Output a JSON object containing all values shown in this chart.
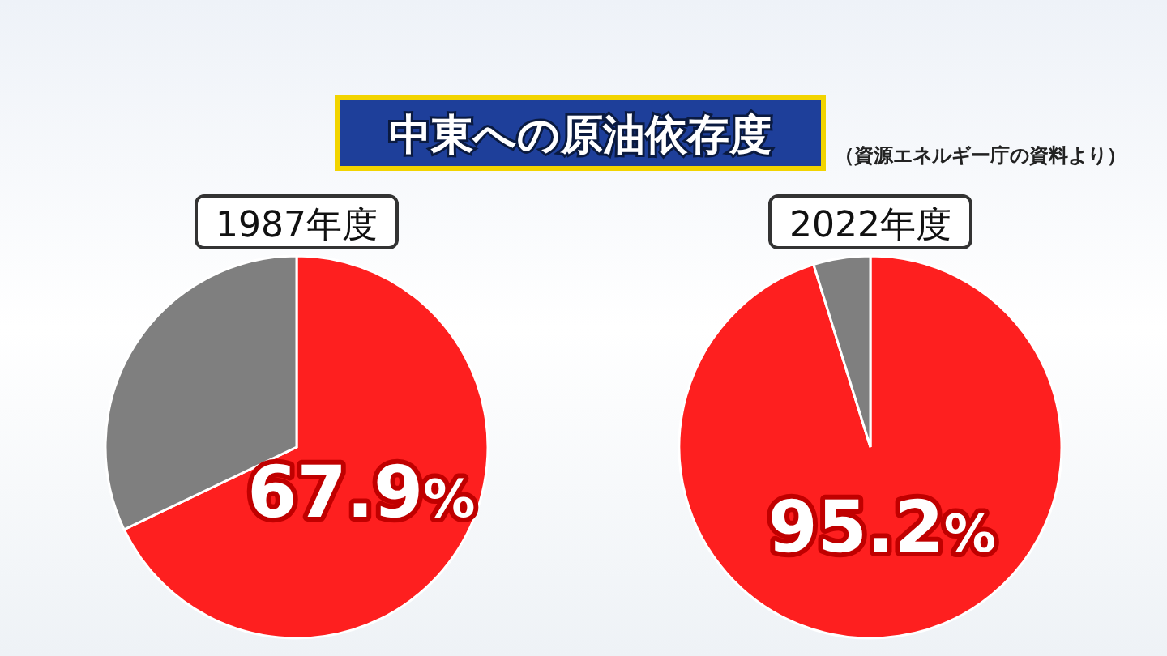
{
  "chart_data": [
    {
      "type": "pie",
      "title": "中東への原油依存度",
      "subtitle": "1987年度",
      "annotations": [
        "（資源エネルギー庁の資料より）"
      ],
      "categories": [
        null,
        null
      ],
      "values": [
        67.9,
        32.1
      ],
      "colors": [
        "#fe1f1f",
        "#7f7f7f"
      ],
      "value_labels": [
        "67.9%",
        null
      ]
    },
    {
      "type": "pie",
      "subtitle": "2022年度",
      "categories": [
        null,
        null
      ],
      "values": [
        95.2,
        4.8
      ],
      "colors": [
        "#fe1f1f",
        "#7f7f7f"
      ],
      "value_labels": [
        "95.2%",
        null
      ]
    }
  ]
}
